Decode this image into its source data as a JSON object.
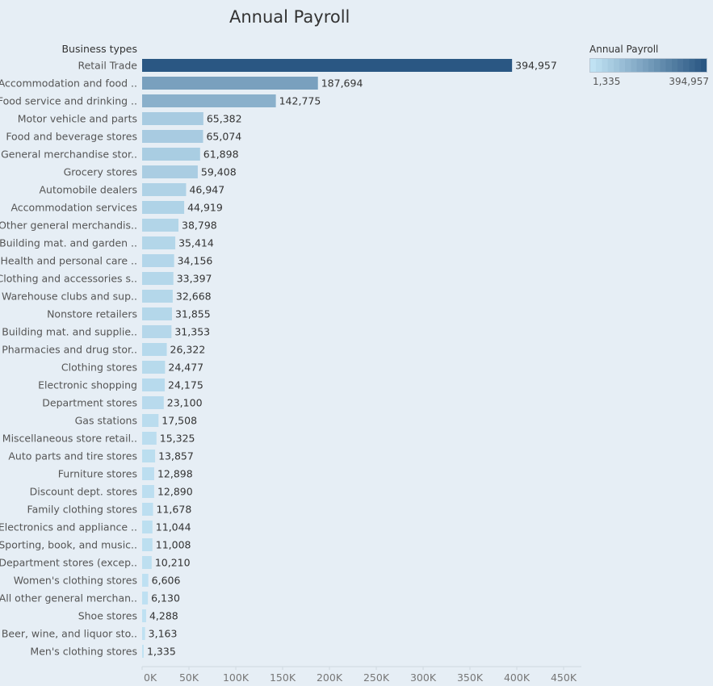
{
  "chart_data": {
    "type": "bar",
    "orientation": "horizontal",
    "title": "Annual Payroll",
    "ylabel": "Business types",
    "xlim": [
      0,
      450000
    ],
    "x_ticks": [
      "0K",
      "50K",
      "100K",
      "150K",
      "200K",
      "250K",
      "300K",
      "350K",
      "400K",
      "450K"
    ],
    "x_tick_values": [
      0,
      50000,
      100000,
      150000,
      200000,
      250000,
      300000,
      350000,
      400000,
      450000
    ],
    "categories": [
      "Retail Trade",
      "Accommodation and food ..",
      "Food service and drinking ..",
      "Motor vehicle and parts",
      "Food and beverage stores",
      "General merchandise stor..",
      "Grocery stores",
      "Automobile dealers",
      "Accommodation services",
      "Other general merchandis..",
      "Building mat. and garden ..",
      "Health and personal care ..",
      "Clothing and accessories s..",
      "Warehouse clubs and sup..",
      "Nonstore retailers",
      "Building mat. and supplie..",
      "Pharmacies and drug stor..",
      "Clothing stores",
      "Electronic shopping",
      "Department stores",
      "Gas stations",
      "Miscellaneous store retail..",
      "Auto parts and tire stores",
      "Furniture stores",
      "Discount dept. stores",
      "Family clothing stores",
      "Electronics and appliance ..",
      "Sporting, book, and music..",
      "Department stores (excep..",
      "Women's clothing stores",
      "All other general merchan..",
      "Shoe stores",
      "Beer, wine, and liquor sto..",
      "Men's clothing stores"
    ],
    "values": [
      394957,
      187694,
      142775,
      65382,
      65074,
      61898,
      59408,
      46947,
      44919,
      38798,
      35414,
      34156,
      33397,
      32668,
      31855,
      31353,
      26322,
      24477,
      24175,
      23100,
      17508,
      15325,
      13857,
      12898,
      12890,
      11678,
      11044,
      11008,
      10210,
      6606,
      6130,
      4288,
      3163,
      1335
    ],
    "value_labels": [
      "394,957",
      "187,694",
      "142,775",
      "65,382",
      "65,074",
      "61,898",
      "59,408",
      "46,947",
      "44,919",
      "38,798",
      "35,414",
      "34,156",
      "33,397",
      "32,668",
      "31,855",
      "31,353",
      "26,322",
      "24,477",
      "24,175",
      "23,100",
      "17,508",
      "15,325",
      "13,857",
      "12,898",
      "12,890",
      "11,678",
      "11,044",
      "11,008",
      "10,210",
      "6,606",
      "6,130",
      "4,288",
      "3,163",
      "1,335"
    ],
    "color_legend": {
      "title": "Annual Payroll",
      "min_label": "1,335",
      "max_label": "394,957",
      "min_value": 1335,
      "max_value": 394957,
      "min_color": "#c0e2f3",
      "max_color": "#2a5783"
    },
    "grid": false,
    "legend_position": "top-right"
  }
}
